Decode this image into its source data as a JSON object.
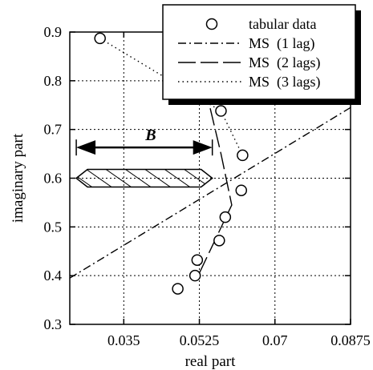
{
  "chart_data": {
    "type": "scatter",
    "title": "",
    "xlabel": "real part",
    "ylabel": "imaginary part",
    "xlim": [
      0.0225,
      0.0875
    ],
    "ylim": [
      0.3,
      0.9
    ],
    "xticks": [
      0.035,
      0.0525,
      0.07,
      0.0875
    ],
    "xtick_labels": [
      "0.035",
      "0.0525",
      "0.07",
      "0.0875"
    ],
    "yticks": [
      0.3,
      0.4,
      0.5,
      0.6,
      0.7,
      0.8,
      0.9
    ],
    "ytick_labels": [
      "0.3",
      "0.4",
      "0.5",
      "0.6",
      "0.7",
      "0.8",
      "0.9"
    ],
    "grid": true,
    "legend_position": "top-right",
    "series": [
      {
        "name": "tabular data",
        "style": "markers",
        "points": [
          [
            0.0295,
            0.887
          ],
          [
            0.0575,
            0.738
          ],
          [
            0.0625,
            0.647
          ],
          [
            0.0622,
            0.575
          ],
          [
            0.0585,
            0.52
          ],
          [
            0.0571,
            0.472
          ],
          [
            0.052,
            0.432
          ],
          [
            0.0515,
            0.4
          ],
          [
            0.0475,
            0.373
          ]
        ]
      },
      {
        "name": "MS  (1 lag)",
        "style": "dash-dot",
        "points": [
          [
            0.0225,
            0.395
          ],
          [
            0.0875,
            0.745
          ]
        ]
      },
      {
        "name": "MS  (2 lags)",
        "style": "long-dash",
        "points": [
          [
            0.0525,
            0.405
          ],
          [
            0.06,
            0.545
          ],
          [
            0.0575,
            0.65
          ],
          [
            0.0535,
            0.8
          ],
          [
            0.048,
            0.9
          ]
        ]
      },
      {
        "name": "MS  (3 lags)",
        "style": "dotted",
        "points": [
          [
            0.0295,
            0.887
          ],
          [
            0.0575,
            0.738
          ],
          [
            0.0625,
            0.647
          ]
        ]
      }
    ],
    "annotations": [
      {
        "label": "B",
        "x_range": [
          0.024,
          0.0555
        ],
        "y": 0.663
      }
    ],
    "hatched_band": {
      "x_range": [
        0.024,
        0.0555
      ],
      "y_center": 0.6
    }
  }
}
